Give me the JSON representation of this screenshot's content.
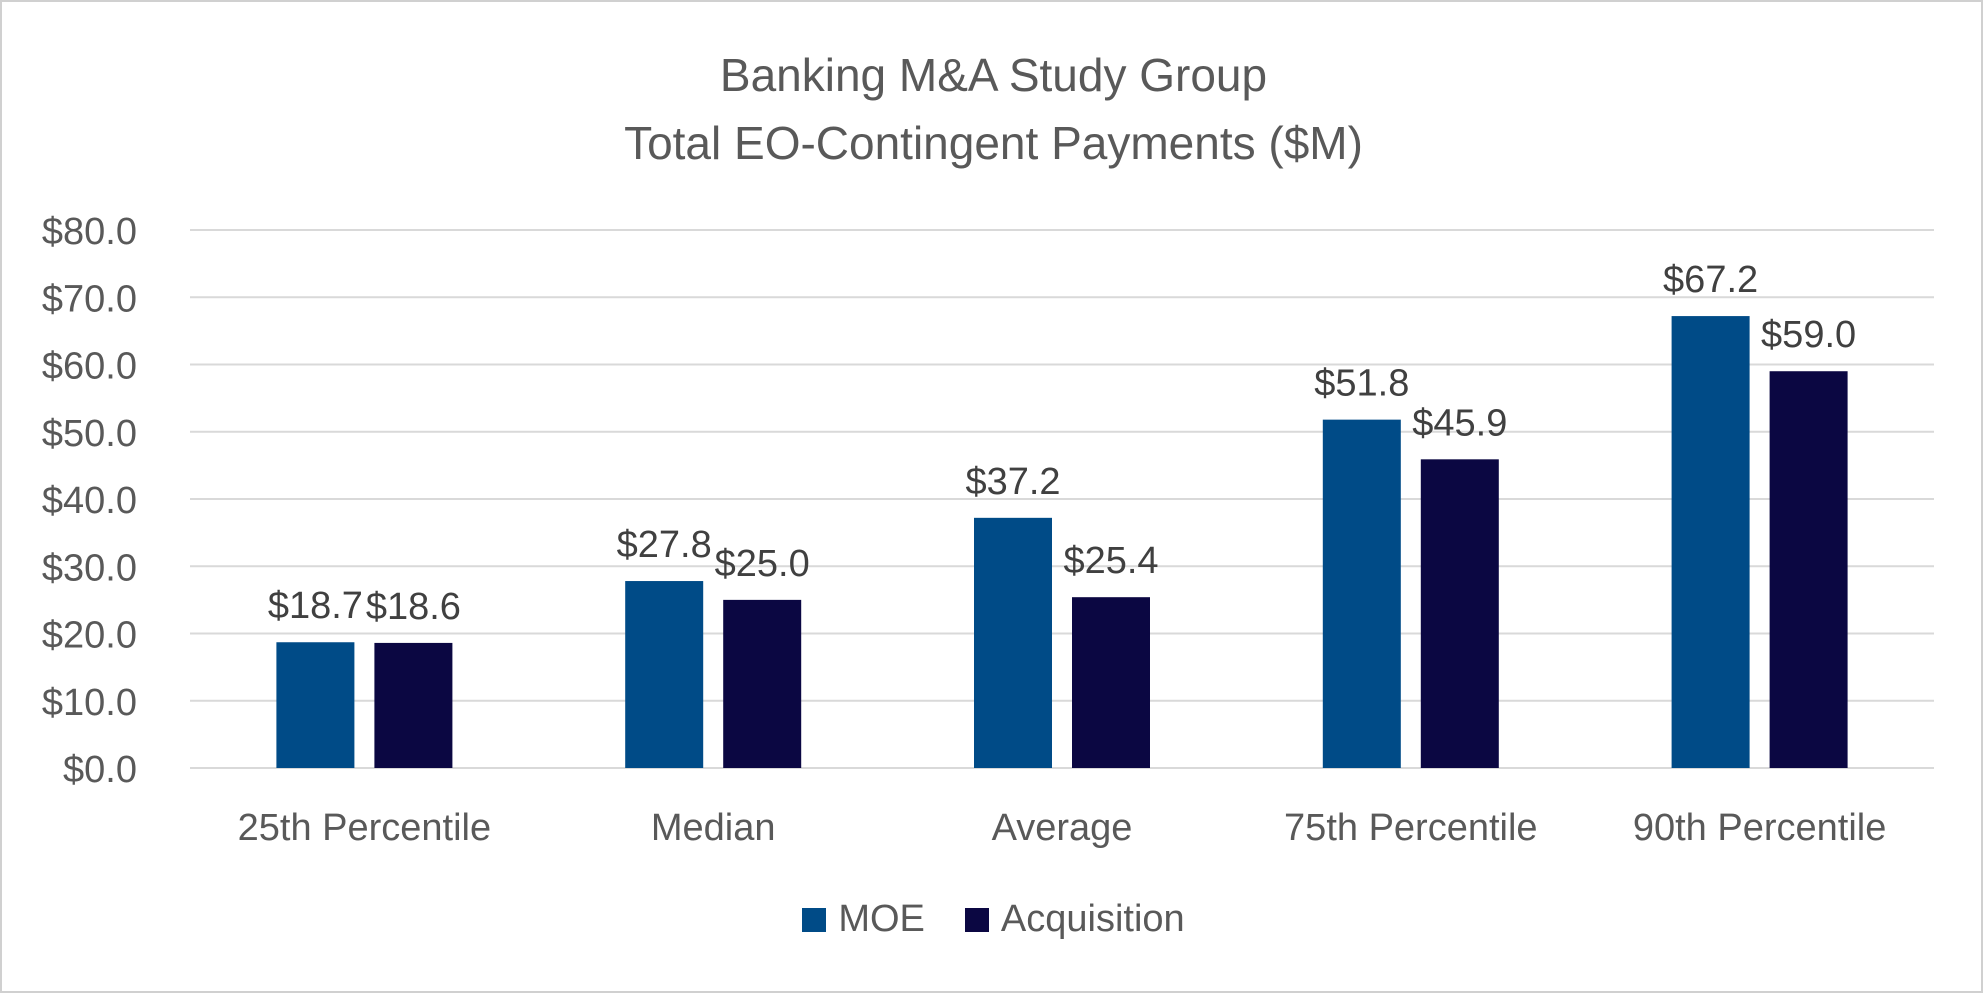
{
  "chart_data": {
    "type": "bar",
    "title": "Banking M&A Study Group",
    "subtitle": "Total EO-Contingent Payments ($M)",
    "categories": [
      "25th Percentile",
      "Median",
      "Average",
      "75th Percentile",
      "90th Percentile"
    ],
    "series": [
      {
        "name": "MOE",
        "color": "#004b87",
        "values": [
          18.7,
          27.8,
          37.2,
          51.8,
          67.2
        ],
        "labels": [
          "$18.7",
          "$27.8",
          "$37.2",
          "$51.8",
          "$67.2"
        ]
      },
      {
        "name": "Acquisition",
        "color": "#0b0742",
        "values": [
          18.6,
          25.0,
          25.4,
          45.9,
          59.0
        ],
        "labels": [
          "$18.6",
          "$25.0",
          "$25.4",
          "$45.9",
          "$59.0"
        ]
      }
    ],
    "ylim": [
      0,
      80
    ],
    "yticks": [
      0,
      10,
      20,
      30,
      40,
      50,
      60,
      70,
      80
    ],
    "ytick_labels": [
      "$0.0",
      "$10.0",
      "$20.0",
      "$30.0",
      "$40.0",
      "$50.0",
      "$60.0",
      "$70.0",
      "$80.0"
    ],
    "xlabel": "",
    "ylabel": "",
    "grid": true,
    "legend_position": "bottom-center"
  }
}
